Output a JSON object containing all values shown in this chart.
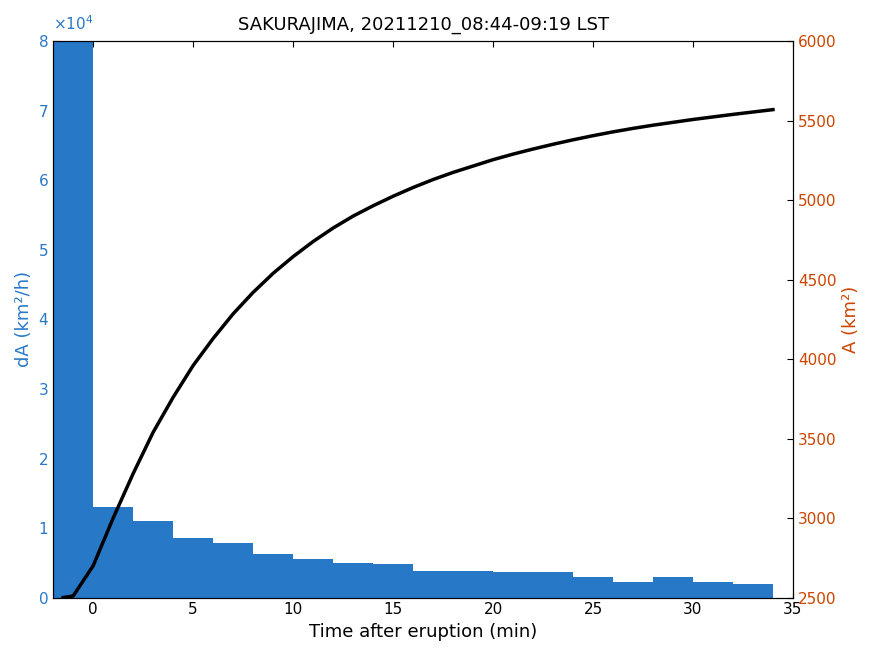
{
  "title": "SAKURAJIMA, 20211210_08:44-09:19 LST",
  "xlabel": "Time after eruption (min)",
  "ylabel_left": "dA (km²/h)",
  "ylabel_right": "A (km²)",
  "bar_color": "#2878c8",
  "line_color": "#000000",
  "left_axis_color": "#2878c8",
  "right_axis_color": "#cc4400",
  "bar_centers": [
    -1,
    1,
    3,
    5,
    7,
    9,
    11,
    13,
    15,
    17,
    19,
    21,
    23,
    25,
    27,
    29,
    31,
    33
  ],
  "bar_values": [
    80000,
    13000,
    11000,
    8500,
    7800,
    6200,
    5500,
    5000,
    4800,
    3800,
    3800,
    3700,
    3700,
    2900,
    2200,
    2900,
    2200,
    2000
  ],
  "line_times": [
    -1.5,
    -1,
    0,
    1,
    2,
    3,
    4,
    5,
    6,
    7,
    8,
    9,
    10,
    11,
    12,
    13,
    14,
    15,
    16,
    17,
    18,
    19,
    20,
    21,
    22,
    23,
    24,
    25,
    26,
    27,
    28,
    29,
    30,
    31,
    32,
    33,
    34
  ],
  "line_values": [
    2500,
    2510,
    2700,
    3000,
    3280,
    3540,
    3760,
    3960,
    4130,
    4285,
    4420,
    4540,
    4645,
    4740,
    4825,
    4900,
    4965,
    5025,
    5080,
    5130,
    5175,
    5215,
    5255,
    5290,
    5322,
    5352,
    5380,
    5406,
    5430,
    5452,
    5472,
    5490,
    5508,
    5524,
    5540,
    5555,
    5570
  ],
  "xlim": [
    -2,
    35
  ],
  "ylim_left": [
    0,
    80000
  ],
  "ylim_right": [
    2500,
    6000
  ],
  "xticks": [
    0,
    5,
    10,
    15,
    20,
    25,
    30,
    35
  ],
  "yticks_left": [
    0,
    10000,
    20000,
    30000,
    40000,
    50000,
    60000,
    70000,
    80000
  ],
  "yticks_right": [
    2500,
    3000,
    3500,
    4000,
    4500,
    5000,
    5500,
    6000
  ],
  "bar_width": 2.0,
  "title_fontsize": 13,
  "label_fontsize": 13,
  "tick_fontsize": 11,
  "line_width": 2.5
}
